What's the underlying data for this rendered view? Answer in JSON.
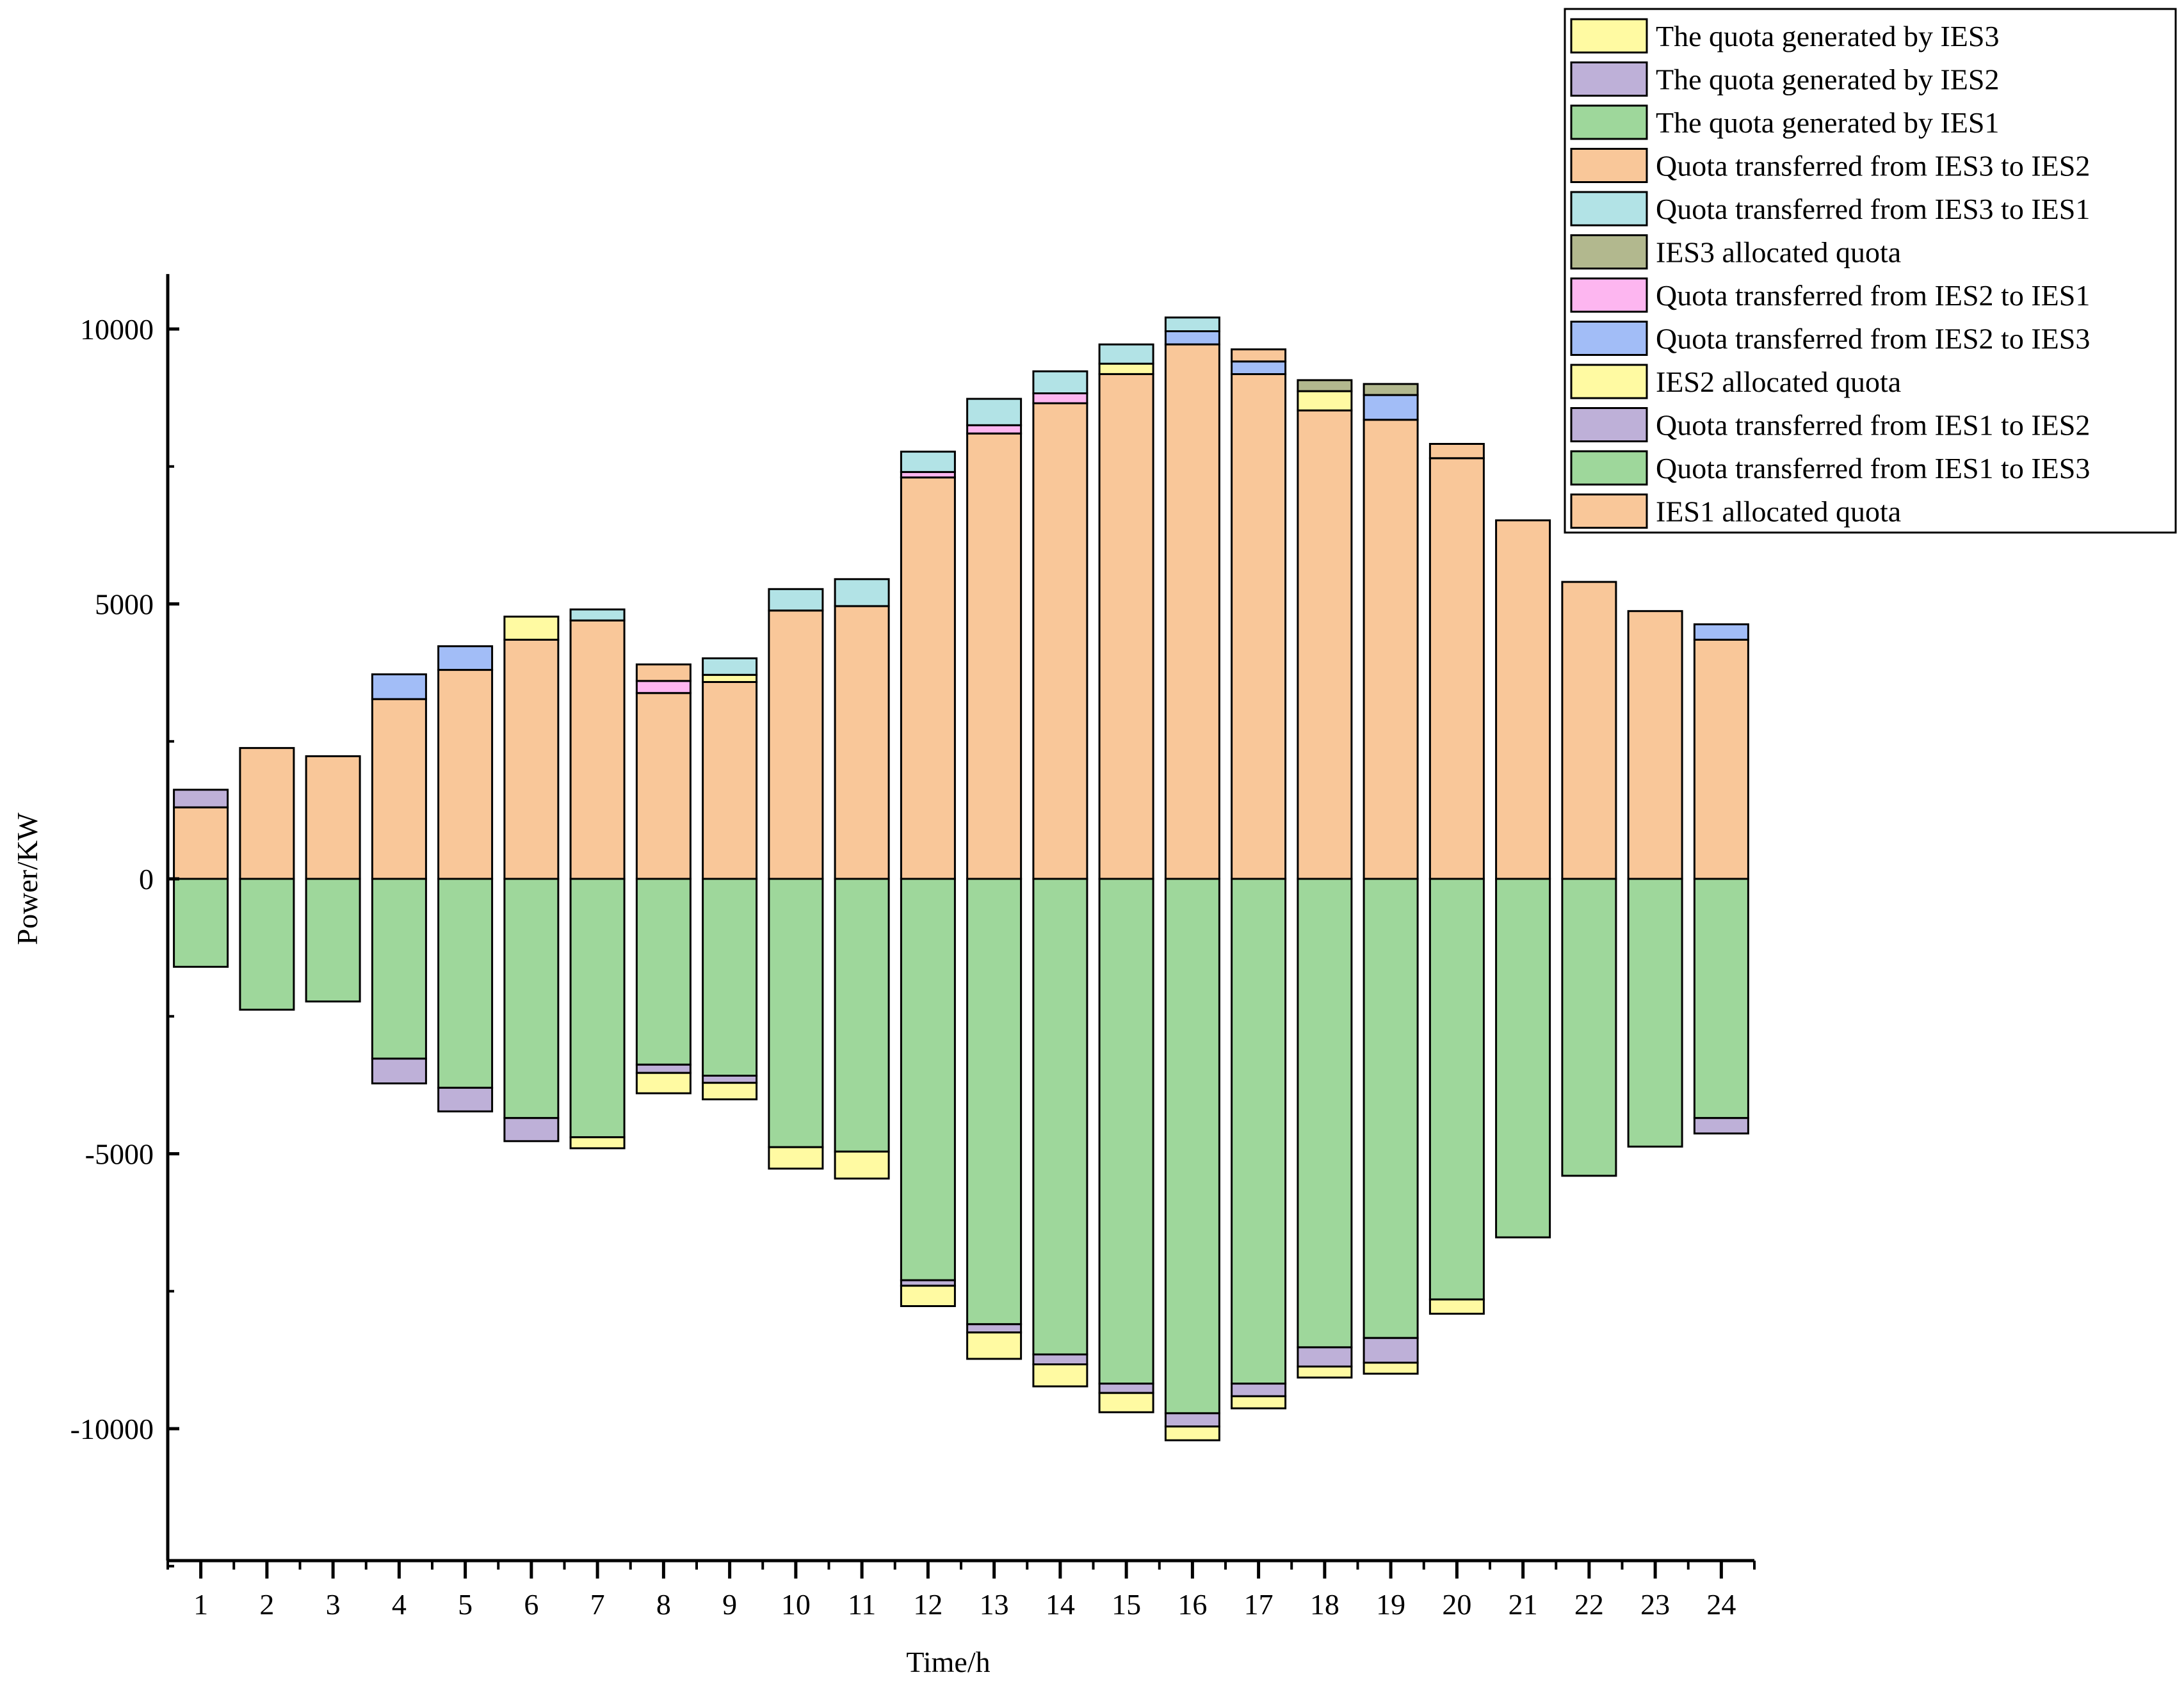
{
  "chart_data": {
    "type": "bar",
    "stacked": "diverging",
    "xlabel": "Time/h",
    "ylabel": "Power/KW",
    "ylim": [
      -12400,
      11000
    ],
    "yticks": [
      -10000,
      -5000,
      0,
      5000,
      10000
    ],
    "yminor": [
      -12500,
      -7500,
      -2500,
      2500,
      7500
    ],
    "categories": [
      "1",
      "2",
      "3",
      "4",
      "5",
      "6",
      "7",
      "8",
      "9",
      "10",
      "11",
      "12",
      "13",
      "14",
      "15",
      "16",
      "17",
      "18",
      "19",
      "20",
      "21",
      "22",
      "23",
      "24"
    ],
    "legend": [
      "The quota generated by IES3",
      "The quota generated by IES2",
      "The quota generated by IES1",
      "Quota transferred from IES3 to IES2",
      "Quota transferred from IES3 to IES1",
      "IES3 allocated quota",
      "Quota transferred from IES2 to IES1",
      "Quota transferred from IES2 to IES3",
      "IES2 allocated quota",
      "Quota transferred from IES1 to IES2",
      "Quota transferred from IES1 to IES3",
      "IES1 allocated quota"
    ],
    "legend_position": "top-right",
    "positive_series": [
      {
        "name": "IES1 allocated quota",
        "color": "#F9C799",
        "values": [
          1300,
          2380,
          2230,
          3270,
          3800,
          4350,
          4700,
          3380,
          3580,
          4880,
          4960,
          7300,
          8100,
          8650,
          9180,
          9720,
          9180,
          8520,
          8350,
          7650,
          6520,
          5400,
          4870,
          4350
        ]
      },
      {
        "name": "Quota transferred from IES1 to IES3",
        "color": "#9ED79B",
        "values": [
          0,
          0,
          0,
          0,
          0,
          0,
          0,
          0,
          0,
          0,
          0,
          0,
          0,
          0,
          0,
          0,
          0,
          0,
          0,
          0,
          0,
          0,
          0,
          0
        ]
      },
      {
        "name": "Quota transferred from IES1 to IES2",
        "color": "#BEB0D8",
        "values": [
          320,
          0,
          0,
          0,
          0,
          0,
          0,
          0,
          0,
          0,
          0,
          0,
          0,
          0,
          0,
          0,
          0,
          0,
          0,
          0,
          0,
          0,
          0,
          0
        ]
      },
      {
        "name": "IES2 allocated quota",
        "color": "#FFFAA2",
        "values": [
          0,
          0,
          0,
          0,
          0,
          420,
          0,
          0,
          130,
          0,
          0,
          0,
          0,
          0,
          190,
          0,
          0,
          350,
          0,
          0,
          0,
          0,
          0,
          0
        ]
      },
      {
        "name": "Quota transferred from IES2 to IES3",
        "color": "#A2BDF7",
        "values": [
          0,
          0,
          0,
          450,
          430,
          0,
          0,
          0,
          0,
          0,
          0,
          0,
          0,
          0,
          0,
          240,
          230,
          0,
          450,
          0,
          0,
          0,
          0,
          280
        ]
      },
      {
        "name": "Quota transferred from IES2 to IES1",
        "color": "#FDB6F0",
        "values": [
          0,
          0,
          0,
          0,
          0,
          0,
          0,
          220,
          0,
          0,
          0,
          100,
          150,
          180,
          0,
          0,
          0,
          0,
          0,
          0,
          0,
          0,
          0,
          0
        ]
      },
      {
        "name": "IES3 allocated quota",
        "color": "#B2B88E",
        "values": [
          0,
          0,
          0,
          0,
          0,
          0,
          0,
          0,
          0,
          0,
          0,
          0,
          0,
          0,
          0,
          0,
          0,
          200,
          200,
          0,
          0,
          0,
          0,
          0
        ]
      },
      {
        "name": "Quota transferred from IES3 to IES1",
        "color": "#B2E3E6",
        "values": [
          0,
          0,
          0,
          0,
          0,
          0,
          200,
          0,
          300,
          390,
          490,
          370,
          480,
          400,
          350,
          250,
          0,
          0,
          0,
          0,
          0,
          0,
          0,
          0
        ]
      },
      {
        "name": "Quota transferred from IES3 to IES2",
        "color": "#F9C799",
        "values": [
          0,
          0,
          0,
          0,
          0,
          0,
          0,
          300,
          0,
          0,
          0,
          0,
          0,
          0,
          0,
          0,
          220,
          0,
          0,
          260,
          0,
          0,
          0,
          0
        ]
      }
    ],
    "negative_series": [
      {
        "name": "The quota generated by IES1",
        "color": "#9ED79B",
        "values": [
          -1600,
          -2380,
          -2230,
          -3270,
          -3800,
          -4350,
          -4700,
          -3380,
          -3580,
          -4880,
          -4960,
          -7300,
          -8100,
          -8650,
          -9180,
          -9720,
          -9180,
          -8520,
          -8350,
          -7650,
          -6520,
          -5400,
          -4870,
          -4350
        ]
      },
      {
        "name": "The quota generated by IES2",
        "color": "#BEB0D8",
        "values": [
          0,
          0,
          0,
          -450,
          -430,
          -420,
          0,
          -150,
          -130,
          0,
          0,
          -100,
          -150,
          -180,
          -170,
          -240,
          -230,
          -350,
          -450,
          0,
          0,
          0,
          0,
          -280
        ]
      },
      {
        "name": "The quota generated by IES3",
        "color": "#FFFAA2",
        "values": [
          0,
          0,
          0,
          0,
          0,
          0,
          -200,
          -370,
          -300,
          -390,
          -490,
          -370,
          -480,
          -400,
          -350,
          -250,
          -220,
          -200,
          -200,
          -260,
          0,
          0,
          0,
          0
        ]
      }
    ]
  }
}
